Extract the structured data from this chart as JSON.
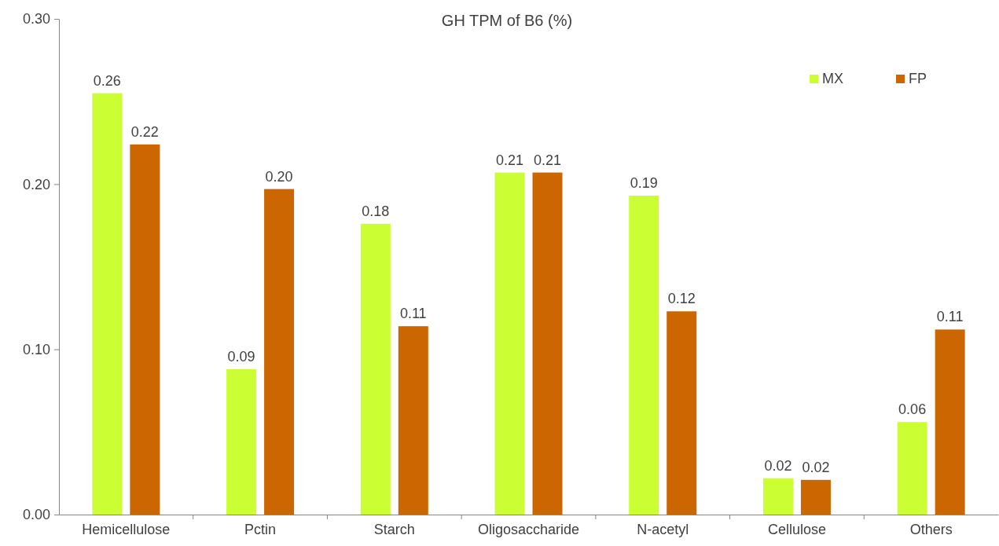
{
  "chart_data": {
    "type": "bar",
    "title": "GH TPM of B6 (%)",
    "categories": [
      "Hemicellulose",
      "Pctin",
      "Starch",
      "Oligosaccharide",
      "N-acetyl",
      "Cellulose",
      "Others"
    ],
    "series": [
      {
        "name": "MX",
        "color": "#ccff33",
        "values": [
          0.255,
          0.088,
          0.176,
          0.207,
          0.193,
          0.022,
          0.056
        ],
        "value_labels": [
          "0.26",
          "0.09",
          "0.18",
          "0.21",
          "0.19",
          "0.02",
          "0.06"
        ]
      },
      {
        "name": "FP",
        "color": "#cc6600",
        "values": [
          0.224,
          0.197,
          0.114,
          0.207,
          0.123,
          0.021,
          0.112
        ],
        "value_labels": [
          "0.22",
          "0.20",
          "0.11",
          "0.21",
          "0.12",
          "0.02",
          "0.11"
        ]
      }
    ],
    "ylim": [
      0,
      0.3
    ],
    "yticks": [
      {
        "value": 0,
        "label": "0.00"
      },
      {
        "value": 0.1,
        "label": "0.10"
      },
      {
        "value": 0.2,
        "label": "0.20"
      },
      {
        "value": 0.3,
        "label": "0.30"
      }
    ],
    "grid": false,
    "legend": "top right"
  }
}
